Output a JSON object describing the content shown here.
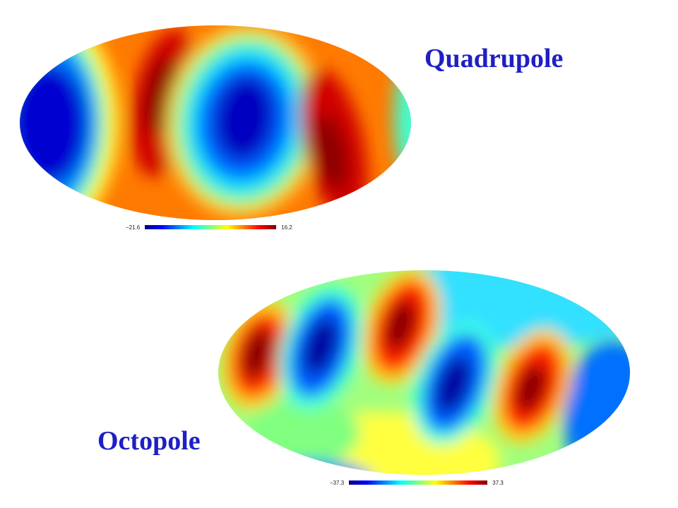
{
  "quadrupole": {
    "title": "Quadrupole",
    "colorbar": {
      "min": "−21.6",
      "max": "16.2"
    },
    "map_image": "mollweide-sky-map-quadrupole"
  },
  "octopole": {
    "title": "Octopole",
    "colorbar": {
      "min": "−37.3",
      "max": "37.3"
    },
    "map_image": "mollweide-sky-map-octopole"
  },
  "colors": {
    "title_text": "#1f1fc4",
    "colormap": [
      "#00007f",
      "#0000ff",
      "#0080ff",
      "#00ffff",
      "#80ff80",
      "#ffff00",
      "#ff8000",
      "#ff0000",
      "#7f0000"
    ]
  }
}
